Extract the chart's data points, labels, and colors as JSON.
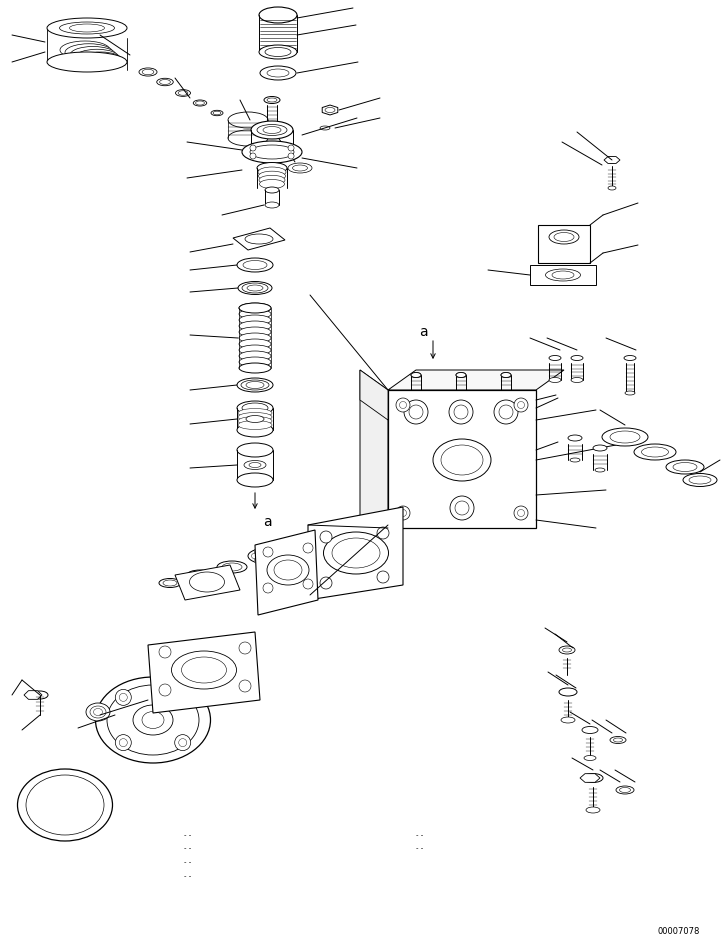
{
  "bg_color": "#ffffff",
  "line_color": "#000000",
  "fig_width": 7.26,
  "fig_height": 9.42,
  "dpi": 100,
  "page_id": "00007078"
}
